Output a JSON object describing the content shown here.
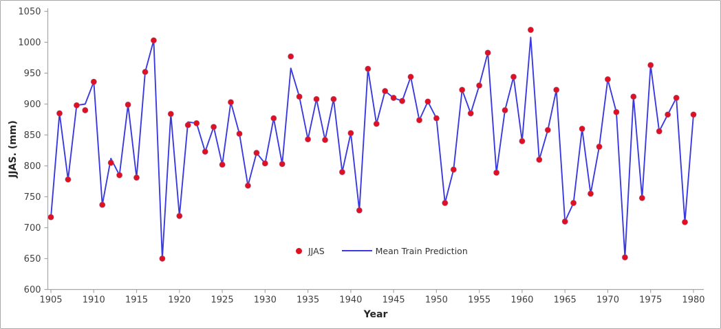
{
  "colors": {
    "marker": "#dd1122",
    "line": "#3939e0",
    "axis": "#a6a6a6",
    "tick_text": "#3f3f3f",
    "frame_border": "#a8a8a8",
    "background": "#ffffff"
  },
  "chart_data": {
    "type": "line",
    "title": "",
    "xlabel": "Year",
    "ylabel": "JJAS. (mm)",
    "xlim": [
      1905,
      1980
    ],
    "ylim": [
      600,
      1050
    ],
    "y_tick_step": 50,
    "x_tick_step": 5,
    "grid": false,
    "legend_position": "inside-bottom-center",
    "x_tick_labels": [
      "1905",
      "1910",
      "1915",
      "1920",
      "1925",
      "1930",
      "1935",
      "1940",
      "1945",
      "1950",
      "1955",
      "1960",
      "1965",
      "1970",
      "1975",
      "1980"
    ],
    "y_tick_labels": [
      "600",
      "650",
      "700",
      "750",
      "800",
      "850",
      "900",
      "950",
      "1000",
      "1050"
    ],
    "x": [
      1905,
      1906,
      1907,
      1908,
      1909,
      1910,
      1911,
      1912,
      1913,
      1914,
      1915,
      1916,
      1917,
      1918,
      1919,
      1920,
      1921,
      1922,
      1923,
      1924,
      1925,
      1926,
      1927,
      1928,
      1929,
      1930,
      1931,
      1932,
      1933,
      1934,
      1935,
      1936,
      1937,
      1938,
      1939,
      1940,
      1941,
      1942,
      1943,
      1944,
      1945,
      1946,
      1947,
      1948,
      1949,
      1950,
      1951,
      1952,
      1953,
      1954,
      1955,
      1956,
      1957,
      1958,
      1959,
      1960,
      1961,
      1962,
      1963,
      1964,
      1965,
      1966,
      1967,
      1968,
      1969,
      1970,
      1971,
      1972,
      1973,
      1974,
      1975,
      1976,
      1977,
      1978,
      1979,
      1980
    ],
    "series": [
      {
        "name": "JJAS",
        "style": "scatter",
        "color": "#dd1122",
        "values": [
          717,
          885,
          778,
          898,
          890,
          936,
          737,
          805,
          785,
          899,
          781,
          952,
          1003,
          650,
          884,
          719,
          866,
          869,
          823,
          863,
          802,
          903,
          852,
          768,
          821,
          804,
          877,
          803,
          977,
          912,
          843,
          908,
          842,
          908,
          790,
          853,
          728,
          957,
          868,
          921,
          910,
          905,
          944,
          874,
          904,
          877,
          740,
          794,
          923,
          885,
          930,
          983,
          789,
          890,
          944,
          840,
          1020,
          810,
          858,
          923,
          710,
          740,
          860,
          755,
          831,
          940,
          887,
          652,
          912,
          748,
          963,
          856,
          883,
          910,
          709,
          883
        ]
      },
      {
        "name": "Mean Train Prediction",
        "style": "line",
        "color": "#3939e0",
        "values": [
          717,
          885,
          778,
          898,
          900,
          936,
          737,
          812,
          785,
          899,
          781,
          952,
          1003,
          650,
          884,
          719,
          871,
          869,
          823,
          863,
          802,
          903,
          852,
          768,
          821,
          804,
          877,
          803,
          958,
          912,
          843,
          908,
          842,
          908,
          790,
          853,
          728,
          957,
          868,
          921,
          910,
          905,
          944,
          874,
          904,
          877,
          740,
          794,
          923,
          885,
          930,
          983,
          789,
          890,
          944,
          840,
          1008,
          810,
          858,
          923,
          710,
          740,
          860,
          755,
          831,
          940,
          887,
          652,
          912,
          748,
          963,
          856,
          883,
          910,
          709,
          883
        ]
      }
    ]
  }
}
